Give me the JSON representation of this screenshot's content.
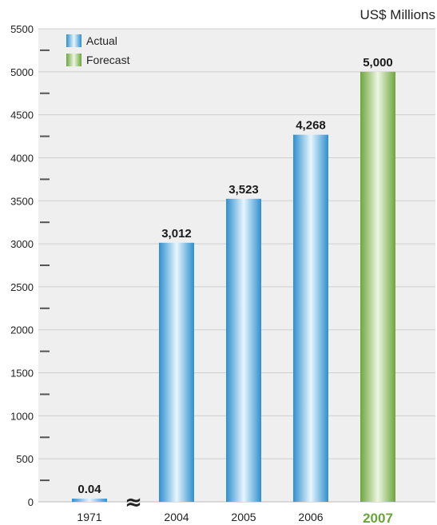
{
  "chart_data": {
    "type": "bar",
    "unit": "US$ Millions",
    "categories": [
      "1971",
      "2004",
      "2005",
      "2006",
      "2007"
    ],
    "values": [
      0.04,
      3012,
      3523,
      4268,
      5000
    ],
    "data_labels": [
      "0.04",
      "3,012",
      "3,523",
      "4,268",
      "5,000"
    ],
    "kind": [
      "actual",
      "actual",
      "actual",
      "actual",
      "forecast"
    ],
    "highlight_category": "2007",
    "axis_break": "≈",
    "ylim": [
      0,
      5500
    ],
    "yticks": [
      0,
      500,
      1000,
      1500,
      2000,
      2500,
      3000,
      3500,
      4000,
      4500,
      5000,
      5500
    ],
    "grid": true,
    "legend": {
      "placement": "top-left",
      "items": [
        {
          "label": "Actual",
          "color": "#3aa0dc"
        },
        {
          "label": "Forecast",
          "color": "#7db446"
        }
      ]
    },
    "colors": {
      "actual": "#3aa0dc",
      "forecast": "#7db446",
      "highlight_label": "#6aa535"
    }
  }
}
